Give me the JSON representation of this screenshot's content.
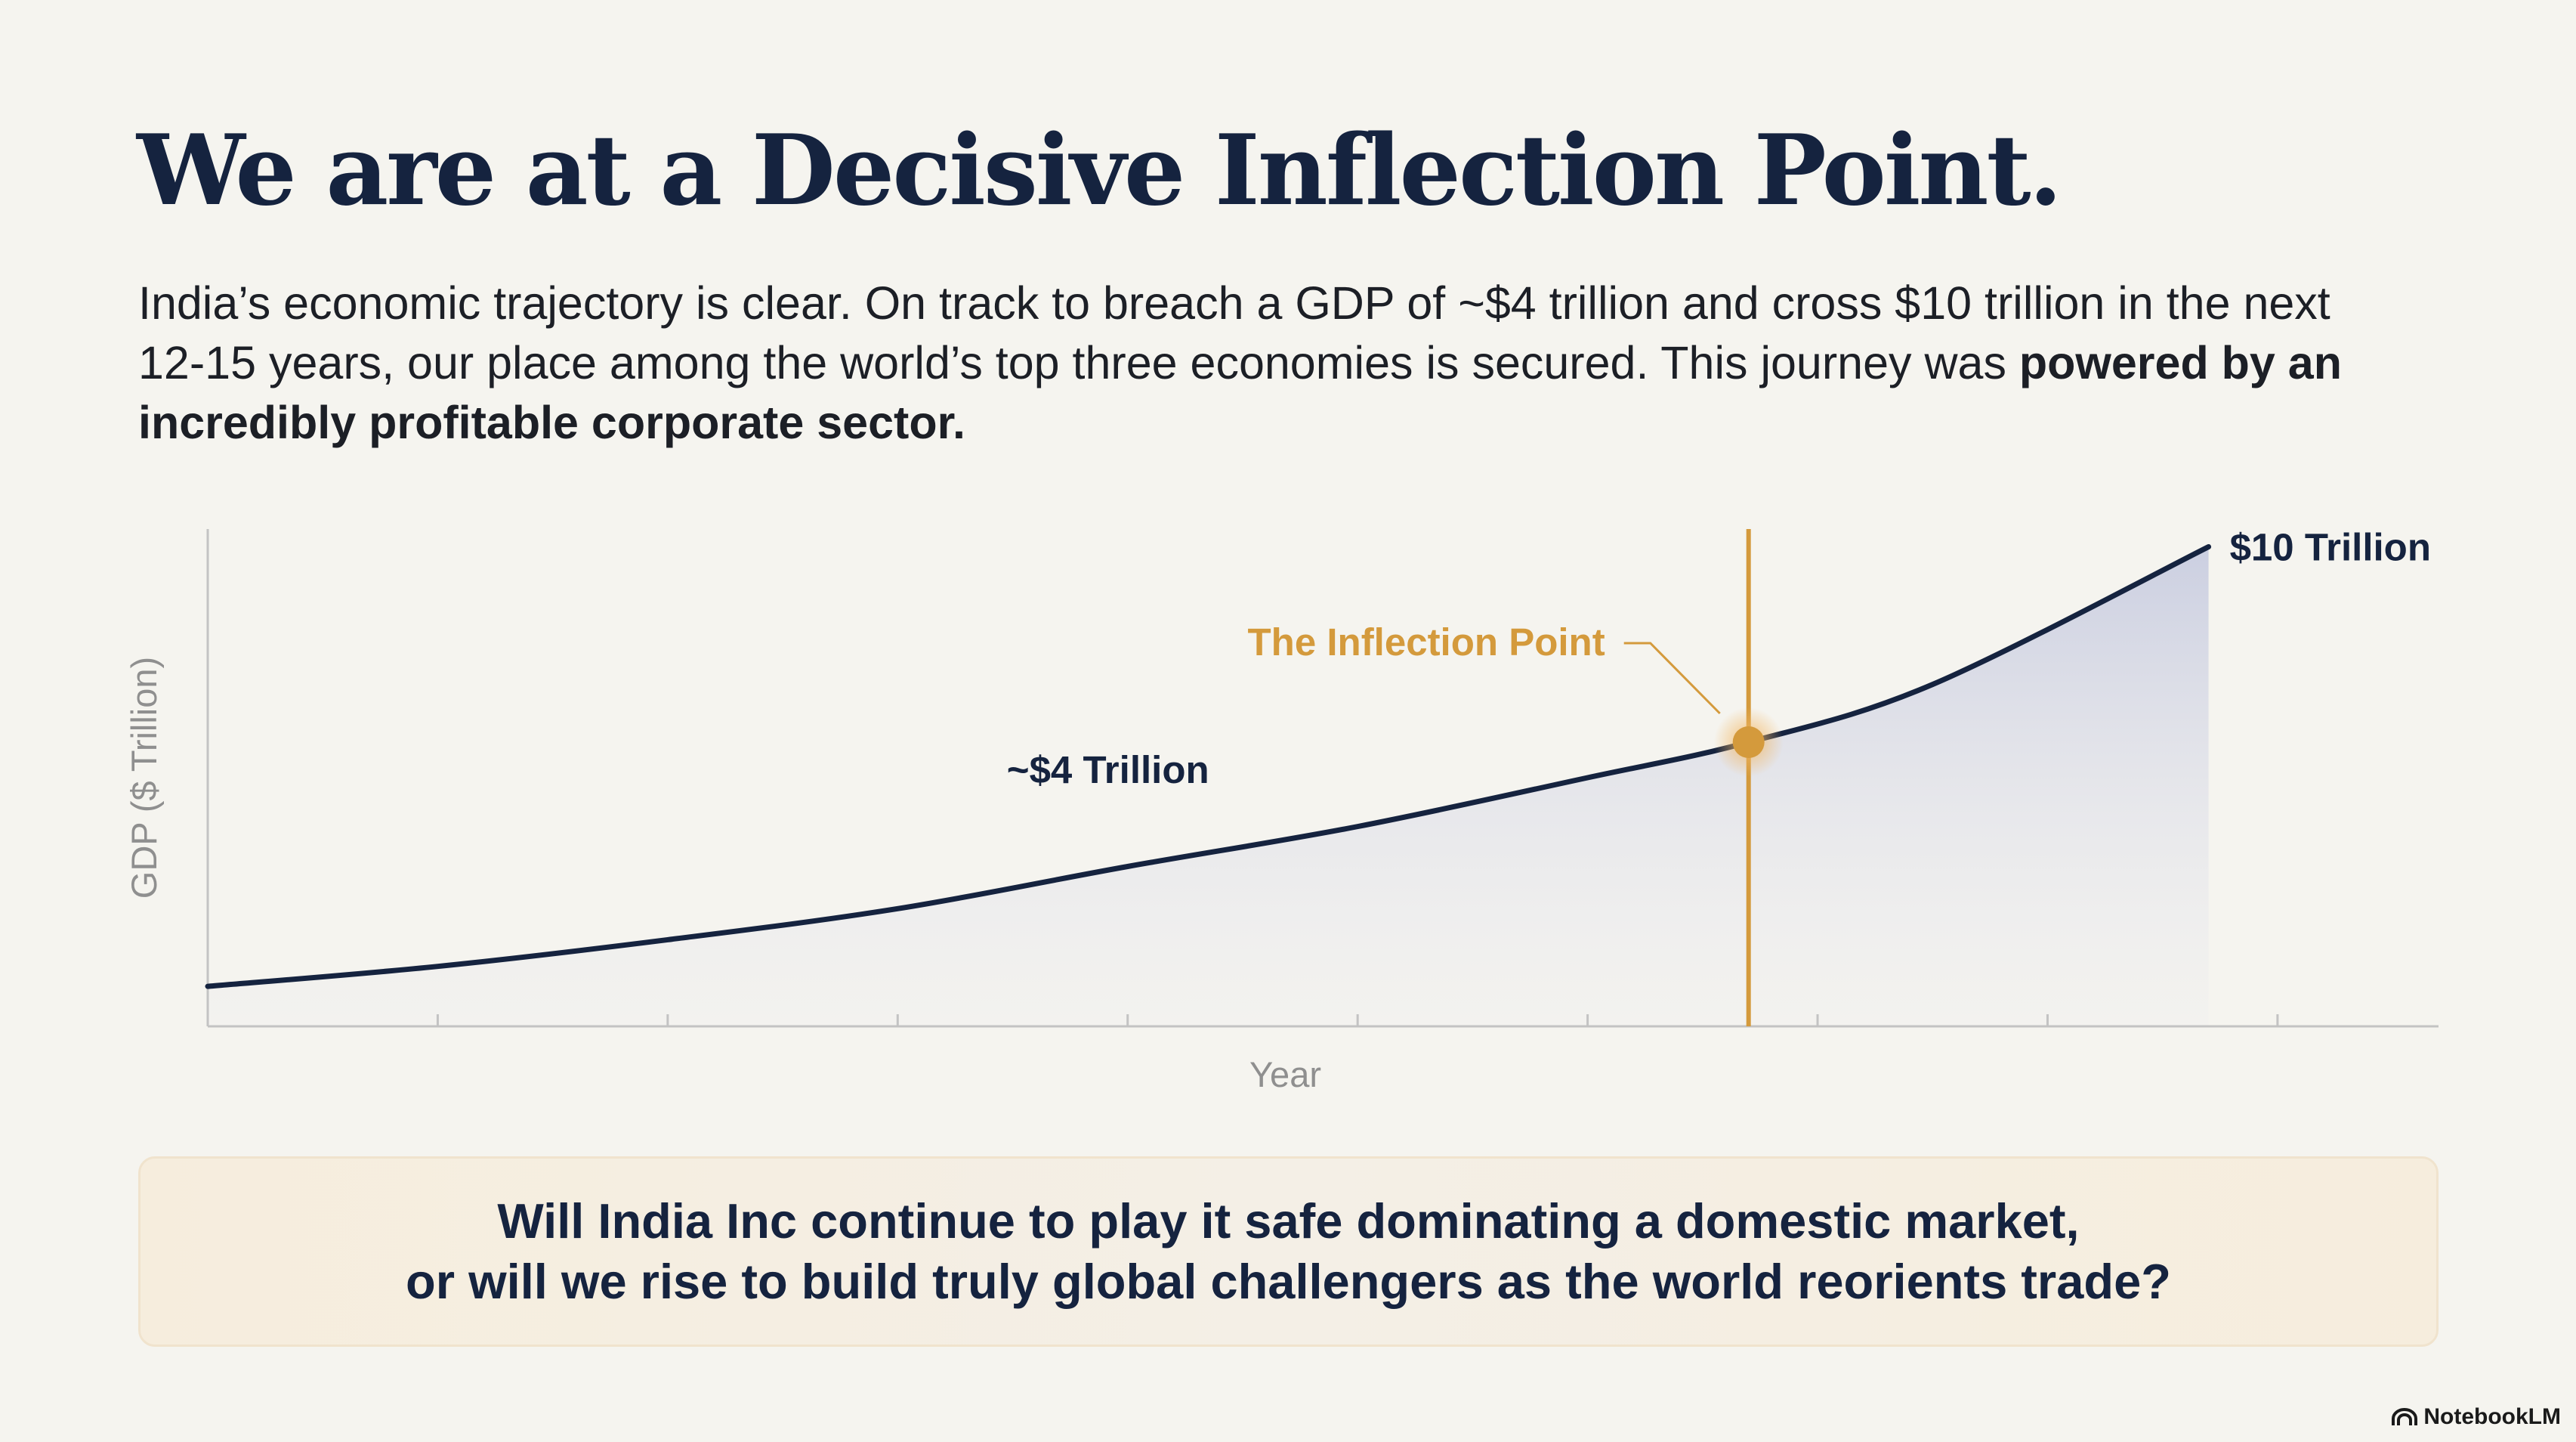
{
  "slide": {
    "title": "We are at a Decisive Inflection Point.",
    "intro_regular": "India’s economic trajectory is clear. On track to breach a GDP of ~$4 trillion and cross $10 trillion in the next 12-15 years, our place among the world’s top three economies is secured. This journey was ",
    "intro_bold": "powered by an incredibly profitable corporate sector.",
    "question_line1": "Will India Inc continue to play it safe dominating a domestic market,",
    "question_line2": "or will we rise to build truly global challengers as the world reorients trade?",
    "brand": "NotebookLM"
  },
  "colors": {
    "navy": "#15233f",
    "gold": "#d49a3c",
    "area_fill": "#c9cde0",
    "axis": "#c3c3c3",
    "axis_text": "#8f8f8f",
    "background": "#f5f4ef"
  },
  "icons": {
    "brand": "notebooklm-logo-icon"
  },
  "chart_data": {
    "type": "area",
    "title": "",
    "xlabel": "Year",
    "ylabel": "GDP ($ Trillion)",
    "x": [
      0,
      1,
      2,
      3,
      4,
      5,
      6,
      6.7,
      7.5,
      8.7
    ],
    "series": [
      {
        "values": [
          0.1,
          0.55,
          1.15,
          1.85,
          2.8,
          3.7,
          4.8,
          5.6,
          6.9,
          10
        ]
      }
    ],
    "xlim": [
      0,
      9.7
    ],
    "ylim": [
      -0.8,
      10.4
    ],
    "x_ticks": [
      0,
      1,
      2,
      3,
      4,
      5,
      6,
      7,
      8,
      9
    ],
    "tick_labels_visible": false,
    "grid": false,
    "legend": "none",
    "annotations": [
      {
        "text": "~$4 Trillion",
        "x": 4.9,
        "y": 4.6
      },
      {
        "text": "$10 Trillion",
        "x": 8.7,
        "y": 10
      },
      {
        "text": "The Inflection Point",
        "x": 6.7,
        "y": 5.6
      }
    ],
    "inflection_point": {
      "x": 6.7,
      "y": 5.6,
      "label": "The Inflection Point"
    }
  }
}
